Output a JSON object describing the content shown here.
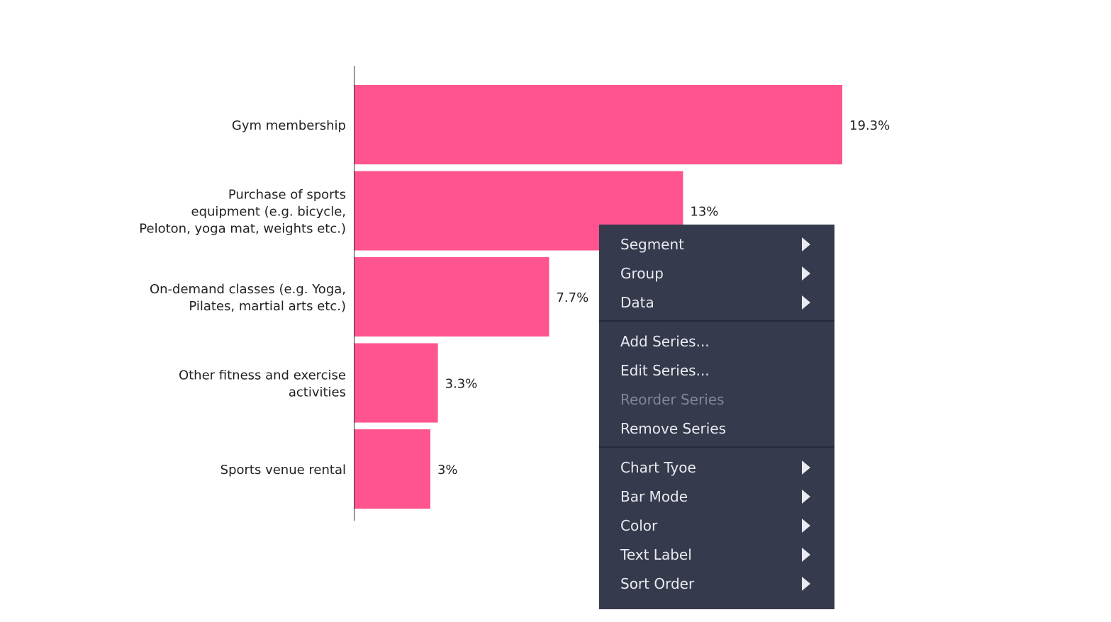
{
  "chart_data": {
    "type": "bar",
    "orientation": "horizontal",
    "categories": [
      [
        "Gym membership"
      ],
      [
        "Purchase of sports",
        "equipment (e.g. bicycle,",
        "Peloton, yoga mat, weights etc.)"
      ],
      [
        "On-demand classes (e.g. Yoga,",
        "Pilates, martial arts etc.)"
      ],
      [
        "Other fitness and exercise",
        "activities"
      ],
      [
        "Sports venue rental"
      ]
    ],
    "values": [
      19.3,
      13,
      7.7,
      3.3,
      3
    ],
    "value_labels": [
      "19.3%",
      "13%",
      "7.7%",
      "3.3%",
      "3%"
    ],
    "bar_color": "#ff5490",
    "xlim": [
      0,
      19.3
    ],
    "grid": false,
    "legend": "none"
  },
  "context_menu": {
    "background": "#353a4c",
    "groups": [
      [
        {
          "label": "Segment",
          "submenu": true,
          "enabled": true
        },
        {
          "label": "Group",
          "submenu": true,
          "enabled": true
        },
        {
          "label": "Data",
          "submenu": true,
          "enabled": true
        }
      ],
      [
        {
          "label": "Add Series...",
          "submenu": false,
          "enabled": true
        },
        {
          "label": "Edit Series...",
          "submenu": false,
          "enabled": true
        },
        {
          "label": "Reorder Series",
          "submenu": false,
          "enabled": false
        },
        {
          "label": "Remove Series",
          "submenu": false,
          "enabled": true
        }
      ],
      [
        {
          "label": "Chart Tyoe",
          "submenu": true,
          "enabled": true
        },
        {
          "label": "Bar Mode",
          "submenu": true,
          "enabled": true
        },
        {
          "label": "Color",
          "submenu": true,
          "enabled": true
        },
        {
          "label": "Text Label",
          "submenu": true,
          "enabled": true
        },
        {
          "label": "Sort Order",
          "submenu": true,
          "enabled": true
        }
      ]
    ]
  }
}
